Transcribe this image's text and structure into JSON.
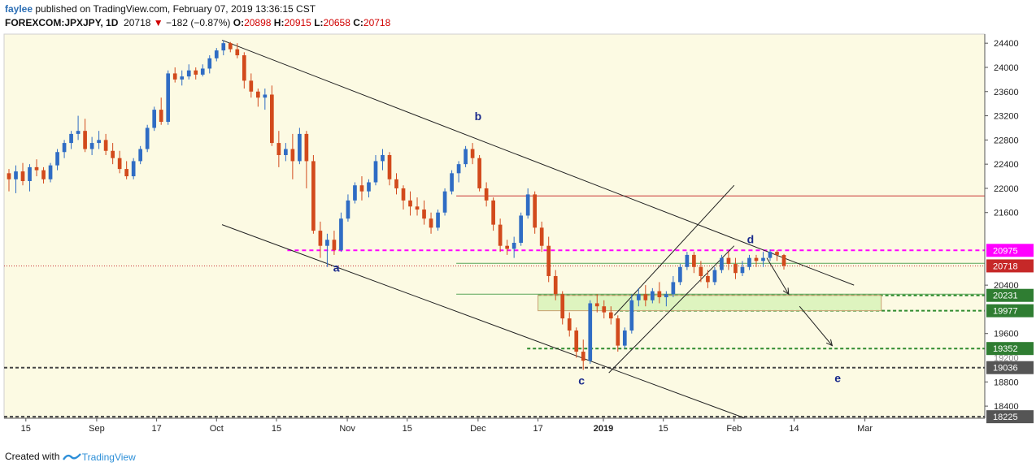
{
  "header": {
    "author": "faylee",
    "line1_rest": " published on TradingView.com, February 07, 2019 13:36:15 CST",
    "symbol": "FOREXCOM:JPXJPY, 1D",
    "last": "20718",
    "change": "−182 (−0.87%)",
    "o_label": "O:",
    "o_value": "20898",
    "h_label": "H:",
    "h_value": "20915",
    "l_label": "L:",
    "l_value": "20658",
    "c_label": "C:",
    "c_value": "20718",
    "down_arrow": "▼"
  },
  "footer": {
    "created_with": "Created with",
    "brand": "TradingView"
  },
  "colors": {
    "plot_bg": "#fcfae3",
    "up": "#2f6cc4",
    "down": "#d24a1c",
    "magenta": "#ff00ff",
    "green_line": "#2e8b2e",
    "dark_dash": "#444444",
    "red_line": "#c83232",
    "label_green": "#2f7d32",
    "label_red": "#c62828",
    "label_magenta": "#ff00ff",
    "wave_label": "#1a2a8c"
  },
  "chart_data": {
    "type": "candlestick",
    "title": "FOREXCOM:JPXJPY, 1D",
    "ylim": [
      18200,
      24550
    ],
    "y_ticks": [
      24400,
      24000,
      23600,
      23200,
      22800,
      22400,
      22000,
      21600,
      20400,
      19600,
      18800,
      18400
    ],
    "x_domain": [
      0,
      180
    ],
    "x_ticks": [
      {
        "label": "15",
        "x": 4
      },
      {
        "label": "Sep",
        "x": 17
      },
      {
        "label": "17",
        "x": 28
      },
      {
        "label": "Oct",
        "x": 39
      },
      {
        "label": "15",
        "x": 50
      },
      {
        "label": "Nov",
        "x": 63
      },
      {
        "label": "15",
        "x": 74
      },
      {
        "label": "Dec",
        "x": 87
      },
      {
        "label": "17",
        "x": 98
      },
      {
        "label": "2019",
        "x": 110
      },
      {
        "label": "15",
        "x": 121
      },
      {
        "label": "Feb",
        "x": 134
      },
      {
        "label": "14",
        "x": 145
      },
      {
        "label": "Mar",
        "x": 158
      }
    ],
    "price_labels": [
      {
        "text": "20975",
        "value": 20975,
        "style": "magenta"
      },
      {
        "text": "20718",
        "value": 20718,
        "style": "red"
      },
      {
        "text": "20231",
        "value": 20231,
        "style": "green"
      },
      {
        "text": "19977",
        "value": 19977,
        "style": "green"
      },
      {
        "text": "19352",
        "value": 19352,
        "style": "green"
      },
      {
        "text": "19036",
        "value": 19036,
        "style": "gray"
      },
      {
        "text": "18225",
        "value": 18225,
        "style": "gray"
      }
    ],
    "hidden_tick": "19200",
    "wave_labels": [
      {
        "text": "a",
        "x": 61,
        "value": 20620
      },
      {
        "text": "b",
        "x": 87,
        "value": 23130
      },
      {
        "text": "c",
        "x": 106,
        "value": 18760
      },
      {
        "text": "d",
        "x": 137,
        "value": 21090
      },
      {
        "text": "e",
        "x": 153,
        "value": 18800
      }
    ],
    "levels": [
      {
        "name": "resistance-21875",
        "value": 21875,
        "x1": 83,
        "x2": 180,
        "style": "red-solid"
      },
      {
        "name": "magenta-20975",
        "value": 20975,
        "x1": 52,
        "x2": 180,
        "style": "magenta-dash"
      },
      {
        "name": "last-20718",
        "value": 20718,
        "x1": 0,
        "x2": 180,
        "style": "red-dot"
      },
      {
        "name": "green-20760",
        "value": 20760,
        "x1": 83,
        "x2": 180,
        "style": "green-solid"
      },
      {
        "name": "green-20250",
        "value": 20250,
        "x1": 83,
        "x2": 180,
        "style": "green-solid"
      },
      {
        "name": "green-20231",
        "value": 20231,
        "x1": 98,
        "x2": 180,
        "style": "green-dash"
      },
      {
        "name": "green-19977",
        "value": 19977,
        "x1": 113,
        "x2": 180,
        "style": "green-dash"
      },
      {
        "name": "green-19352",
        "value": 19352,
        "x1": 96,
        "x2": 180,
        "style": "green-dash"
      },
      {
        "name": "gray-19036",
        "value": 19036,
        "x1": 0,
        "x2": 180,
        "style": "gray-dash"
      },
      {
        "name": "gray-18225",
        "value": 18225,
        "x1": 0,
        "x2": 180,
        "style": "gray-dash"
      }
    ],
    "zone": {
      "x1": 98,
      "x2": 161,
      "top": 20231,
      "bottom": 19977
    },
    "trendlines": [
      {
        "name": "channel-upper",
        "x1": 40,
        "v1": 24450,
        "x2": 156,
        "v2": 20400
      },
      {
        "name": "channel-lower",
        "x1": 40,
        "v1": 21400,
        "x2": 136,
        "v2": 18200
      },
      {
        "name": "rising-wedge-upper",
        "x1": 112,
        "v1": 19900,
        "x2": 134,
        "v2": 22050
      },
      {
        "name": "rising-wedge-lower",
        "x1": 111,
        "v1": 18950,
        "x2": 134,
        "v2": 21050
      }
    ],
    "arrows": [
      {
        "name": "forecast-arrow-1",
        "x1": 140,
        "v1": 20850,
        "x2": 144,
        "v2": 20250
      },
      {
        "name": "forecast-arrow-2",
        "x1": 146,
        "v1": 20050,
        "x2": 152,
        "v2": 19400
      }
    ],
    "candles": [
      [
        22250,
        22320,
        21950,
        22150
      ],
      [
        22150,
        22380,
        21920,
        22280
      ],
      [
        22280,
        22420,
        22050,
        22120
      ],
      [
        22120,
        22400,
        21950,
        22350
      ],
      [
        22350,
        22480,
        22200,
        22300
      ],
      [
        22300,
        22350,
        22080,
        22150
      ],
      [
        22150,
        22420,
        22100,
        22380
      ],
      [
        22380,
        22650,
        22300,
        22600
      ],
      [
        22600,
        22800,
        22500,
        22750
      ],
      [
        22750,
        22950,
        22650,
        22900
      ],
      [
        22900,
        23200,
        22800,
        22950
      ],
      [
        22950,
        23150,
        22600,
        22650
      ],
      [
        22650,
        22850,
        22550,
        22750
      ],
      [
        22750,
        22950,
        22650,
        22800
      ],
      [
        22800,
        22900,
        22550,
        22620
      ],
      [
        22620,
        22750,
        22400,
        22500
      ],
      [
        22500,
        22620,
        22250,
        22320
      ],
      [
        22320,
        22450,
        22150,
        22200
      ],
      [
        22200,
        22500,
        22150,
        22450
      ],
      [
        22450,
        22700,
        22400,
        22650
      ],
      [
        22650,
        23050,
        22600,
        23000
      ],
      [
        23000,
        23350,
        22950,
        23300
      ],
      [
        23300,
        23500,
        23050,
        23100
      ],
      [
        23100,
        23950,
        23050,
        23900
      ],
      [
        23900,
        24000,
        23750,
        23800
      ],
      [
        23800,
        23950,
        23700,
        23850
      ],
      [
        23850,
        24050,
        23800,
        23950
      ],
      [
        23950,
        24000,
        23800,
        23880
      ],
      [
        23880,
        24050,
        23850,
        23980
      ],
      [
        23980,
        24200,
        23900,
        24150
      ],
      [
        24150,
        24320,
        24100,
        24280
      ],
      [
        24280,
        24450,
        24200,
        24400
      ],
      [
        24400,
        24420,
        24250,
        24300
      ],
      [
        24300,
        24400,
        24150,
        24200
      ],
      [
        24200,
        24250,
        23650,
        23780
      ],
      [
        23780,
        23900,
        23500,
        23600
      ],
      [
        23600,
        23650,
        23350,
        23500
      ],
      [
        23500,
        23650,
        23300,
        23550
      ],
      [
        23550,
        23700,
        22700,
        22750
      ],
      [
        22750,
        22950,
        22350,
        22550
      ],
      [
        22550,
        22750,
        22450,
        22650
      ],
      [
        22650,
        22900,
        22150,
        22450
      ],
      [
        22450,
        23000,
        22400,
        22900
      ],
      [
        22900,
        22950,
        22000,
        22450
      ],
      [
        22450,
        22550,
        21250,
        21300
      ],
      [
        21300,
        21450,
        20850,
        21050
      ],
      [
        21050,
        21250,
        20700,
        21150
      ],
      [
        21150,
        21300,
        20900,
        20980
      ],
      [
        20980,
        21600,
        20950,
        21500
      ],
      [
        21500,
        21900,
        21450,
        21800
      ],
      [
        21800,
        22100,
        21750,
        22050
      ],
      [
        22050,
        22200,
        21800,
        21950
      ],
      [
        21950,
        22150,
        21850,
        22100
      ],
      [
        22100,
        22550,
        22050,
        22450
      ],
      [
        22450,
        22650,
        22300,
        22550
      ],
      [
        22550,
        22600,
        22050,
        22150
      ],
      [
        22150,
        22250,
        21900,
        22000
      ],
      [
        22000,
        22050,
        21650,
        21800
      ],
      [
        21800,
        21950,
        21550,
        21700
      ],
      [
        21700,
        21850,
        21550,
        21650
      ],
      [
        21650,
        21800,
        21400,
        21500
      ],
      [
        21500,
        21600,
        21250,
        21350
      ],
      [
        21350,
        21650,
        21300,
        21600
      ],
      [
        21600,
        22000,
        21550,
        21950
      ],
      [
        21950,
        22300,
        21900,
        22250
      ],
      [
        22250,
        22450,
        22100,
        22400
      ],
      [
        22400,
        22700,
        22350,
        22650
      ],
      [
        22650,
        22750,
        22400,
        22500
      ],
      [
        22500,
        22550,
        21950,
        22000
      ],
      [
        22000,
        22100,
        21700,
        21800
      ],
      [
        21800,
        21850,
        21300,
        21400
      ],
      [
        21400,
        21500,
        20950,
        21050
      ],
      [
        21050,
        21150,
        20900,
        21000
      ],
      [
        21000,
        21200,
        20850,
        21100
      ],
      [
        21100,
        21600,
        21050,
        21550
      ],
      [
        21550,
        22000,
        21500,
        21900
      ],
      [
        21900,
        21950,
        21250,
        21350
      ],
      [
        21350,
        21450,
        20950,
        21050
      ],
      [
        21050,
        21200,
        20450,
        20550
      ],
      [
        20550,
        20650,
        20150,
        20250
      ],
      [
        20250,
        20300,
        19750,
        19850
      ],
      [
        19850,
        19950,
        19550,
        19650
      ],
      [
        19650,
        19700,
        19200,
        19300
      ],
      [
        19300,
        19500,
        19000,
        19150
      ],
      [
        19150,
        20150,
        19100,
        20100
      ],
      [
        20100,
        20250,
        19950,
        20050
      ],
      [
        20050,
        20150,
        19850,
        19950
      ],
      [
        19950,
        20050,
        19750,
        19850
      ],
      [
        19850,
        19900,
        19300,
        19400
      ],
      [
        19400,
        19700,
        19350,
        19650
      ]
    ],
    "candles_part2": [
      [
        19650,
        20250,
        19600,
        20150
      ],
      [
        20150,
        20350,
        20050,
        20250
      ],
      [
        20250,
        20400,
        20050,
        20150
      ],
      [
        20150,
        20350,
        20100,
        20300
      ],
      [
        20300,
        20450,
        20100,
        20200
      ],
      [
        20200,
        20300,
        20050,
        20250
      ],
      [
        20250,
        20550,
        20200,
        20450
      ],
      [
        20450,
        20750,
        20400,
        20700
      ],
      [
        20700,
        20950,
        20650,
        20900
      ],
      [
        20900,
        20950,
        20600,
        20700
      ],
      [
        20700,
        20800,
        20450,
        20550
      ],
      [
        20550,
        20650,
        20350,
        20450
      ],
      [
        20450,
        20700,
        20400,
        20650
      ],
      [
        20650,
        20900,
        20600,
        20850
      ],
      [
        20850,
        20950,
        20650,
        20750
      ],
      [
        20750,
        20850,
        20500,
        20600
      ],
      [
        20600,
        20800,
        20550,
        20700
      ],
      [
        20700,
        20900,
        20650,
        20850
      ],
      [
        20850,
        20900,
        20700,
        20800
      ],
      [
        20800,
        20950,
        20700,
        20850
      ],
      [
        20850,
        20990,
        20800,
        20950
      ],
      [
        20950,
        20980,
        20800,
        20900
      ],
      [
        20898,
        20915,
        20658,
        20718
      ]
    ]
  }
}
